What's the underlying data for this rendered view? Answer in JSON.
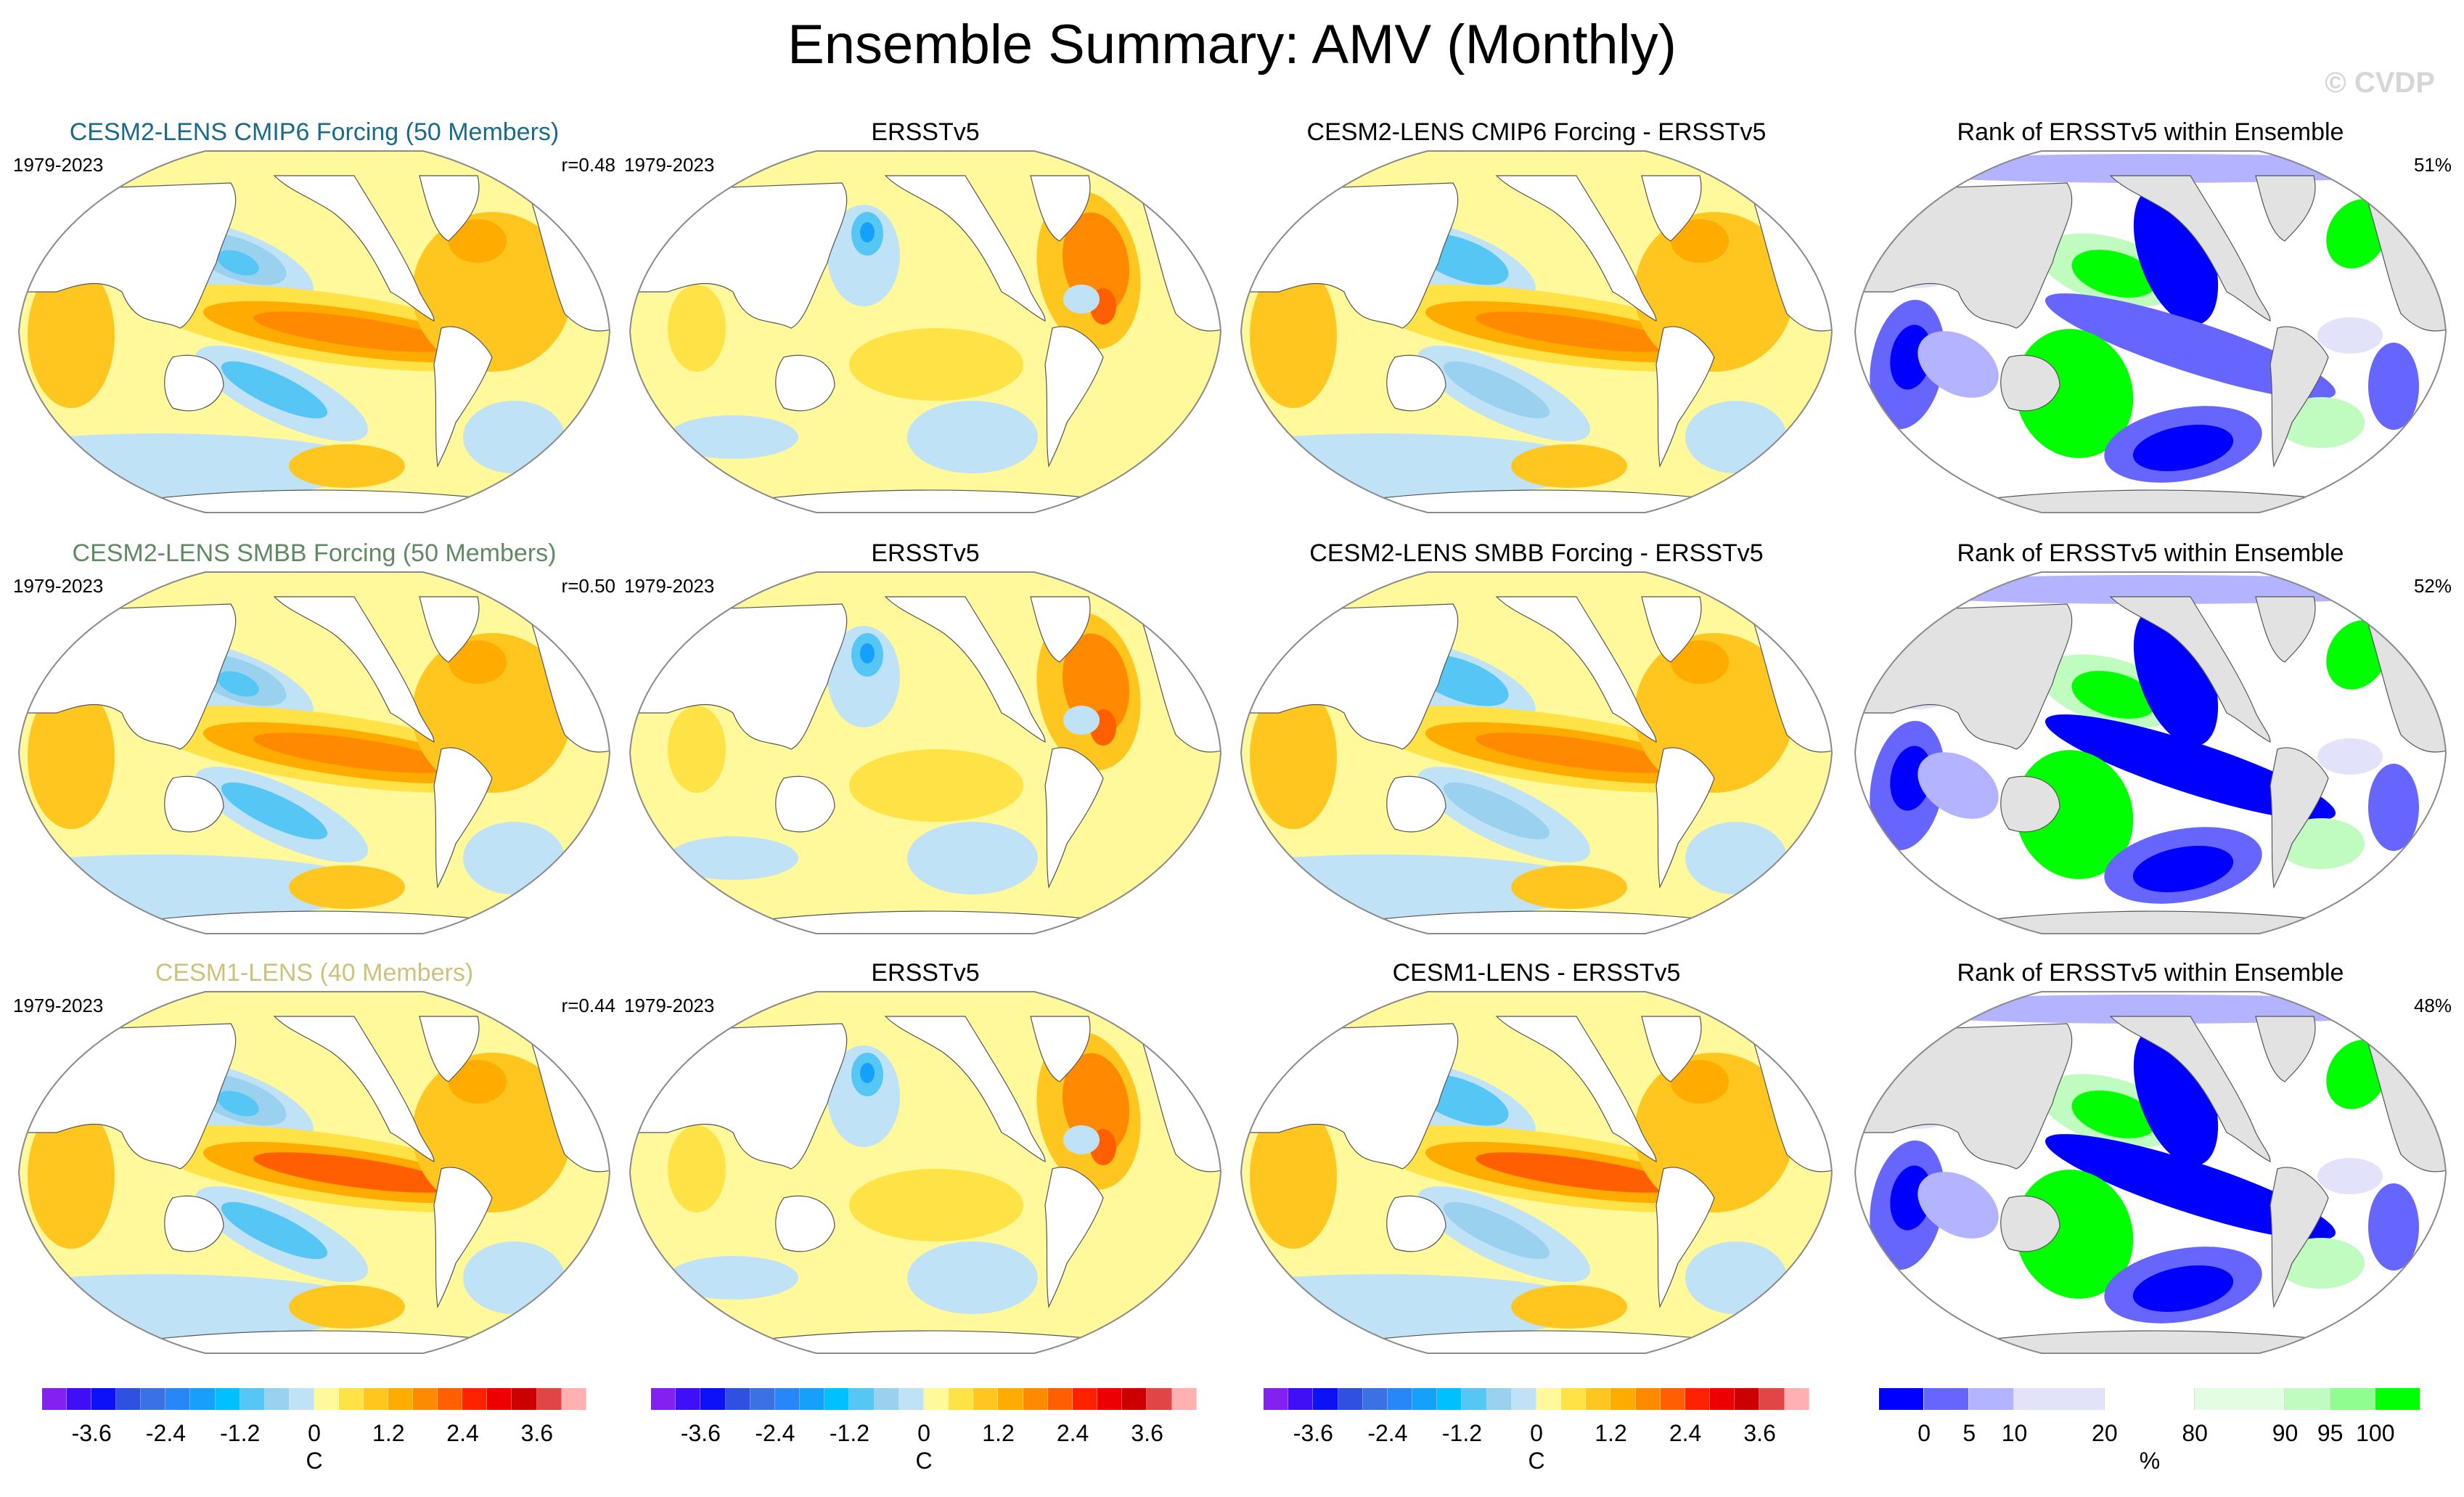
{
  "title": "Ensemble Summary: AMV (Monthly)",
  "watermark": "© CVDP",
  "rows": [
    {
      "model_title": "CESM2-LENS CMIP6 Forcing (50 Members)",
      "model_title_color": "#1b6a89",
      "period": "1979-2023",
      "pattern_corr": "r=0.48",
      "obs_title": "ERSSTv5",
      "obs_period": "1979-2023",
      "diff_title": "CESM2-LENS CMIP6 Forcing - ERSSTv5",
      "rank_title": "Rank of ERSSTv5 within Ensemble",
      "rank_pct": "51%"
    },
    {
      "model_title": "CESM2-LENS SMBB Forcing (50 Members)",
      "model_title_color": "#5f8a62",
      "period": "1979-2023",
      "pattern_corr": "r=0.50",
      "obs_title": "ERSSTv5",
      "obs_period": "1979-2023",
      "diff_title": "CESM2-LENS SMBB Forcing - ERSSTv5",
      "rank_title": "Rank of ERSSTv5 within Ensemble",
      "rank_pct": "52%"
    },
    {
      "model_title": "CESM1-LENS (40 Members)",
      "model_title_color": "#cdc27c",
      "period": "1979-2023",
      "pattern_corr": "r=0.44",
      "obs_title": "ERSSTv5",
      "obs_period": "1979-2023",
      "diff_title": "CESM1-LENS - ERSSTv5",
      "rank_title": "Rank of ERSSTv5 within Ensemble",
      "rank_pct": "48%"
    }
  ],
  "chart_data": [
    {
      "type": "heatmap",
      "title": "Temperature anomaly colorbar",
      "unit": "C",
      "levels": [
        -4.0,
        -3.6,
        -3.2,
        -2.8,
        -2.4,
        -2.0,
        -1.6,
        -1.2,
        -0.8,
        -0.4,
        0,
        0.4,
        0.8,
        1.2,
        1.6,
        2.0,
        2.4,
        2.8,
        3.2,
        3.6,
        4.0
      ],
      "tick_labels": [
        "-3.6",
        "-2.4",
        "-1.2",
        "0",
        "1.2",
        "2.4",
        "3.6"
      ],
      "tick_values": [
        -3.6,
        -2.4,
        -1.2,
        0,
        1.2,
        2.4,
        3.6
      ],
      "colors": [
        "#8221f0",
        "#3f0ff5",
        "#0d12f5",
        "#3050e0",
        "#3a72e6",
        "#2887f8",
        "#15a0fb",
        "#00c0ff",
        "#56c6f5",
        "#9ad1ee",
        "#bfe2f6",
        "#fff99b",
        "#ffe245",
        "#ffc620",
        "#ffab00",
        "#ff8900",
        "#ff5f00",
        "#ff2200",
        "#ee0000",
        "#cc0000",
        "#e04646",
        "#ffb1b1"
      ],
      "used_by": [
        "model",
        "obs",
        "difference"
      ]
    },
    {
      "type": "heatmap",
      "title": "Rank colorbar",
      "unit": "%",
      "tick_labels": [
        "0",
        "5",
        "10",
        "20",
        "80",
        "90",
        "95",
        "100"
      ],
      "tick_values": [
        0,
        5,
        10,
        20,
        80,
        90,
        95,
        100
      ],
      "bins": [
        {
          "from": null,
          "to": 0,
          "color": "#0000ff"
        },
        {
          "from": 0,
          "to": 5,
          "color": "#6666ff"
        },
        {
          "from": 5,
          "to": 10,
          "color": "#b3b3ff"
        },
        {
          "from": 10,
          "to": 20,
          "color": "#e2e2fb"
        },
        {
          "from": 20,
          "to": 80,
          "color": "#ffffff"
        },
        {
          "from": 80,
          "to": 90,
          "color": "#e3fde3"
        },
        {
          "from": 90,
          "to": 95,
          "color": "#c0fbc0"
        },
        {
          "from": 95,
          "to": 100,
          "color": "#8ffd8f"
        },
        {
          "from": 100,
          "to": null,
          "color": "#00ff00"
        }
      ],
      "used_by": [
        "rank"
      ]
    }
  ],
  "land_color_anomaly": "#ffffff",
  "land_color_rank": "#e2e2e2"
}
